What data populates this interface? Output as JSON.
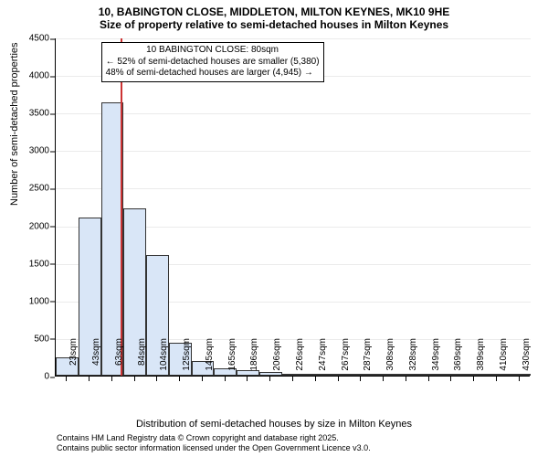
{
  "title_main": "10, BABINGTON CLOSE, MIDDLETON, MILTON KEYNES, MK10 9HE",
  "title_sub": "Size of property relative to semi-detached houses in Milton Keynes",
  "ylabel": "Number of semi-detached properties",
  "xlabel": "Distribution of semi-detached houses by size in Milton Keynes",
  "credits_line1": "Contains HM Land Registry data © Crown copyright and database right 2025.",
  "credits_line2": "Contains public sector information licensed under the Open Government Licence v3.0.",
  "chart": {
    "type": "histogram",
    "ylim": [
      0,
      4500
    ],
    "ytick_step": 500,
    "background_color": "#ffffff",
    "bar_fill": "#d9e6f7",
    "bar_border": "#333333",
    "marker_color": "#cc3333",
    "grid_color": "#e9e9e9",
    "categories": [
      "23sqm",
      "43sqm",
      "63sqm",
      "84sqm",
      "104sqm",
      "125sqm",
      "145sqm",
      "165sqm",
      "186sqm",
      "206sqm",
      "226sqm",
      "247sqm",
      "267sqm",
      "287sqm",
      "308sqm",
      "328sqm",
      "349sqm",
      "369sqm",
      "389sqm",
      "410sqm",
      "430sqm"
    ],
    "values": [
      240,
      2100,
      3640,
      2220,
      1610,
      440,
      200,
      100,
      75,
      45,
      25,
      15,
      12,
      8,
      6,
      5,
      4,
      3,
      2,
      2,
      2
    ],
    "marker_index": 2.85,
    "annotation": {
      "line1": "10 BABINGTON CLOSE: 80sqm",
      "line2": "← 52% of semi-detached houses are smaller (5,380)",
      "line3": "48% of semi-detached houses are larger (4,945) →"
    }
  }
}
